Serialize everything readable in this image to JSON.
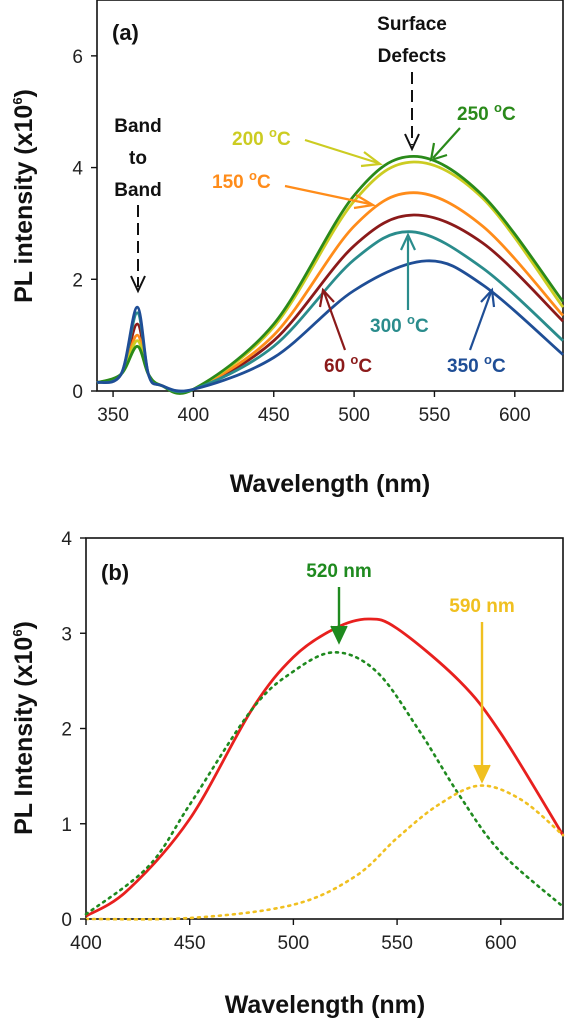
{
  "chart_data": [
    {
      "type": "line",
      "panel_label": "(a)",
      "xlabel": "Wavelength (nm)",
      "ylabel": "PL intensity (x10",
      "ylabel_sup": "6",
      "ylabel_tail": ")",
      "xlim": [
        340,
        630
      ],
      "ylim": [
        0,
        7
      ],
      "xticks": [
        350,
        400,
        450,
        500,
        550,
        600
      ],
      "yticks": [
        0,
        2,
        4,
        6
      ],
      "grid": false,
      "series": [
        {
          "name": "60 °C",
          "color": "#8b1a1a",
          "band_peak": 1.2,
          "peak": 3.15,
          "center": 537,
          "right_end": 1.25,
          "x": [
            340,
            355,
            365,
            372,
            380,
            400,
            450,
            500,
            537,
            580,
            630
          ],
          "y": [
            0.15,
            0.3,
            1.2,
            0.3,
            0.1,
            0.03,
            0.9,
            2.6,
            3.15,
            2.65,
            1.25
          ]
        },
        {
          "name": "150 °C",
          "color": "#ff8c1a",
          "band_peak": 1.0,
          "peak": 3.55,
          "center": 537,
          "right_end": 1.35,
          "x": [
            340,
            355,
            365,
            372,
            380,
            400,
            450,
            500,
            537,
            580,
            630
          ],
          "y": [
            0.15,
            0.3,
            1.0,
            0.3,
            0.1,
            0.03,
            1.0,
            2.95,
            3.55,
            2.95,
            1.35
          ]
        },
        {
          "name": "200 °C",
          "color": "#cccc22",
          "band_peak": 0.9,
          "peak": 4.1,
          "center": 537,
          "right_end": 1.5,
          "x": [
            340,
            355,
            365,
            372,
            380,
            400,
            450,
            500,
            537,
            580,
            630
          ],
          "y": [
            0.15,
            0.3,
            0.9,
            0.3,
            0.1,
            0.03,
            1.15,
            3.4,
            4.1,
            3.45,
            1.5
          ]
        },
        {
          "name": "250 °C",
          "color": "#2a8a1a",
          "band_peak": 0.8,
          "peak": 4.2,
          "center": 537,
          "right_end": 1.6,
          "x": [
            340,
            355,
            365,
            372,
            380,
            400,
            450,
            500,
            537,
            580,
            630
          ],
          "y": [
            0.15,
            0.3,
            0.8,
            0.3,
            0.1,
            0.03,
            1.2,
            3.5,
            4.2,
            3.5,
            1.6
          ]
        },
        {
          "name": "300 °C",
          "color": "#2a8c8c",
          "band_peak": 1.4,
          "peak": 2.85,
          "center": 536,
          "right_end": 0.9,
          "x": [
            340,
            355,
            365,
            372,
            380,
            400,
            450,
            500,
            536,
            580,
            630
          ],
          "y": [
            0.15,
            0.3,
            1.4,
            0.3,
            0.1,
            0.03,
            0.8,
            2.35,
            2.85,
            2.2,
            0.9
          ]
        },
        {
          "name": "350 °C",
          "color": "#1f4e96",
          "band_peak": 1.5,
          "peak": 2.33,
          "center": 545,
          "right_end": 0.65,
          "x": [
            340,
            355,
            365,
            372,
            380,
            400,
            450,
            500,
            545,
            580,
            630
          ],
          "y": [
            0.15,
            0.3,
            1.5,
            0.3,
            0.1,
            0.03,
            0.6,
            1.8,
            2.33,
            1.9,
            0.65
          ]
        }
      ],
      "annotations": {
        "band_to_band": [
          "Band",
          "to",
          "Band"
        ],
        "surface_defects": [
          "Surface",
          "Defects"
        ],
        "labels": [
          {
            "text": "200 °C",
            "color": "#cccc22"
          },
          {
            "text": "250 °C",
            "color": "#2a8a1a"
          },
          {
            "text": "150 °C",
            "color": "#ff8c1a"
          },
          {
            "text": "300 °C",
            "color": "#2a8c8c"
          },
          {
            "text": "60 °C",
            "color": "#8b1a1a"
          },
          {
            "text": "350 °C",
            "color": "#1f4e96"
          }
        ]
      }
    },
    {
      "type": "line",
      "panel_label": "(b)",
      "xlabel": "Wavelength (nm)",
      "ylabel": "PL Intensity (x10",
      "ylabel_sup": "6",
      "ylabel_tail": ")",
      "xlim": [
        400,
        630
      ],
      "ylim": [
        0,
        4
      ],
      "xticks": [
        400,
        450,
        500,
        550,
        600
      ],
      "yticks": [
        0,
        1,
        2,
        3,
        4
      ],
      "grid": false,
      "series": [
        {
          "name": "",
          "style": "solid",
          "color": "#e8201e",
          "peak": 3.15,
          "center": 536,
          "x": [
            400,
            420,
            450,
            480,
            500,
            520,
            536,
            550,
            580,
            600,
            630
          ],
          "y": [
            0.03,
            0.3,
            1.05,
            2.2,
            2.75,
            3.05,
            3.15,
            3.05,
            2.5,
            1.95,
            0.88
          ]
        },
        {
          "name": "",
          "style": "dotted",
          "color": "#1f8a1f",
          "peak": 2.8,
          "center": 520,
          "x": [
            400,
            430,
            450,
            480,
            500,
            520,
            540,
            560,
            580,
            600,
            630
          ],
          "y": [
            0.05,
            0.55,
            1.2,
            2.2,
            2.6,
            2.8,
            2.6,
            2.0,
            1.3,
            0.7,
            0.13
          ]
        },
        {
          "name": "",
          "style": "dotted",
          "color": "#f0c020",
          "peak": 1.4,
          "center": 590,
          "x": [
            400,
            450,
            500,
            530,
            550,
            570,
            590,
            610,
            630
          ],
          "y": [
            0.0,
            0.01,
            0.15,
            0.45,
            0.85,
            1.2,
            1.4,
            1.25,
            0.88
          ]
        }
      ],
      "annotations": {
        "labels": [
          {
            "text": "520 nm",
            "color": "#1f8a1f"
          },
          {
            "text": "590 nm",
            "color": "#f0c020"
          }
        ]
      }
    }
  ]
}
